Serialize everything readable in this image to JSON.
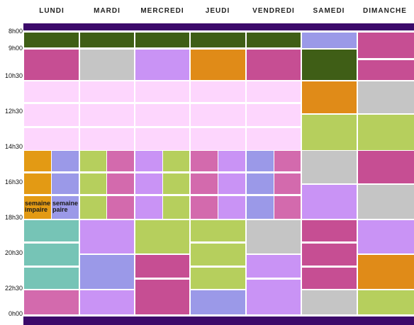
{
  "days": [
    "LUNDI",
    "MARDI",
    "MERCREDI",
    "JEUDI",
    "VENDREDI",
    "SAMEDI",
    "DIMANCHE"
  ],
  "times": [
    "8h00",
    "9h00",
    "10h30",
    "12h30",
    "14h30",
    "16h30",
    "18h30",
    "20h30",
    "22h30",
    "0h00"
  ],
  "notes": {
    "odd_week": "semaine impaire",
    "even_week": "semaine paire"
  },
  "colors": {
    "band": "#3c0a6a",
    "green": "#3f5e16",
    "magenta": "#c64e93",
    "grey": "#c5c5c5",
    "lilac": "#c993f5",
    "orange": "#e08b18",
    "pink": "#fdd6fd",
    "lime": "#b6cf5d",
    "periwinkle": "#9b99e8",
    "teal": "#76c4b6",
    "rose": "#d36aad"
  }
}
